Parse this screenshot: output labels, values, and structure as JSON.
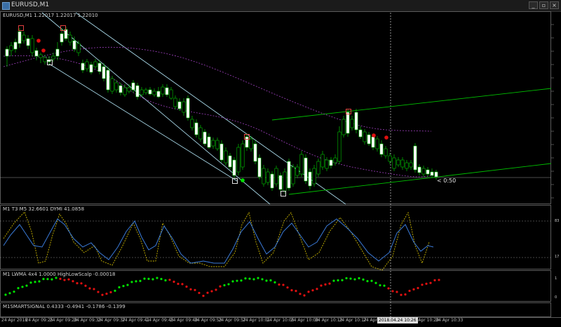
{
  "window": {
    "title": "EURUSD,M1",
    "buttons": [
      "minimize",
      "restore",
      "close"
    ]
  },
  "main_pane": {
    "header": "EURUSD,M1  1.22017 1.22017 1.22010",
    "countdown": "< 0:50"
  },
  "pane2": {
    "header": "M1  T3 M5  32.6601  DYMI 41.0858",
    "levels": [
      "83",
      "17"
    ]
  },
  "pane3": {
    "header": "M1 LWMA 4x4  1.0000  HighLowScalp -0.00018",
    "levels": [
      "1",
      "0"
    ]
  },
  "pane4": {
    "header": "M1SMARTSIGNAL 0.4333 -0.4941 -0.1786 -0.1399"
  },
  "time_axis": {
    "ticks": [
      "24 Apr 2018",
      "24 Apr 09:25",
      "24 Apr 09:29",
      "24 Apr 09:33",
      "24 Apr 09:37",
      "24 Apr 09:41",
      "24 Apr 09:45",
      "24 Apr 09:49",
      "24 Apr 09:53",
      "24 Apr 09:57",
      "24 Apr 10:01",
      "24 Apr 10:05",
      "24 Apr 10:09",
      "24 Apr 10:13",
      "24 Apr 10:17",
      "24 Apr 10:21",
      "24 Apr 10:25",
      "24 Apr 10:29",
      "24 Apr 10:33"
    ],
    "cursor_label": "2018.04.24 10:26"
  },
  "colors": {
    "bull": "#ffffff",
    "bear": "#000000",
    "candle_outline": "#00c000",
    "channel": "#a8d8e8",
    "trend": "#00c000",
    "envelope": "#a040c0",
    "stoch": "#c8b400",
    "rsi": "#3a7ad8",
    "dot_up": "#00e000",
    "dot_down": "#e01010"
  }
}
